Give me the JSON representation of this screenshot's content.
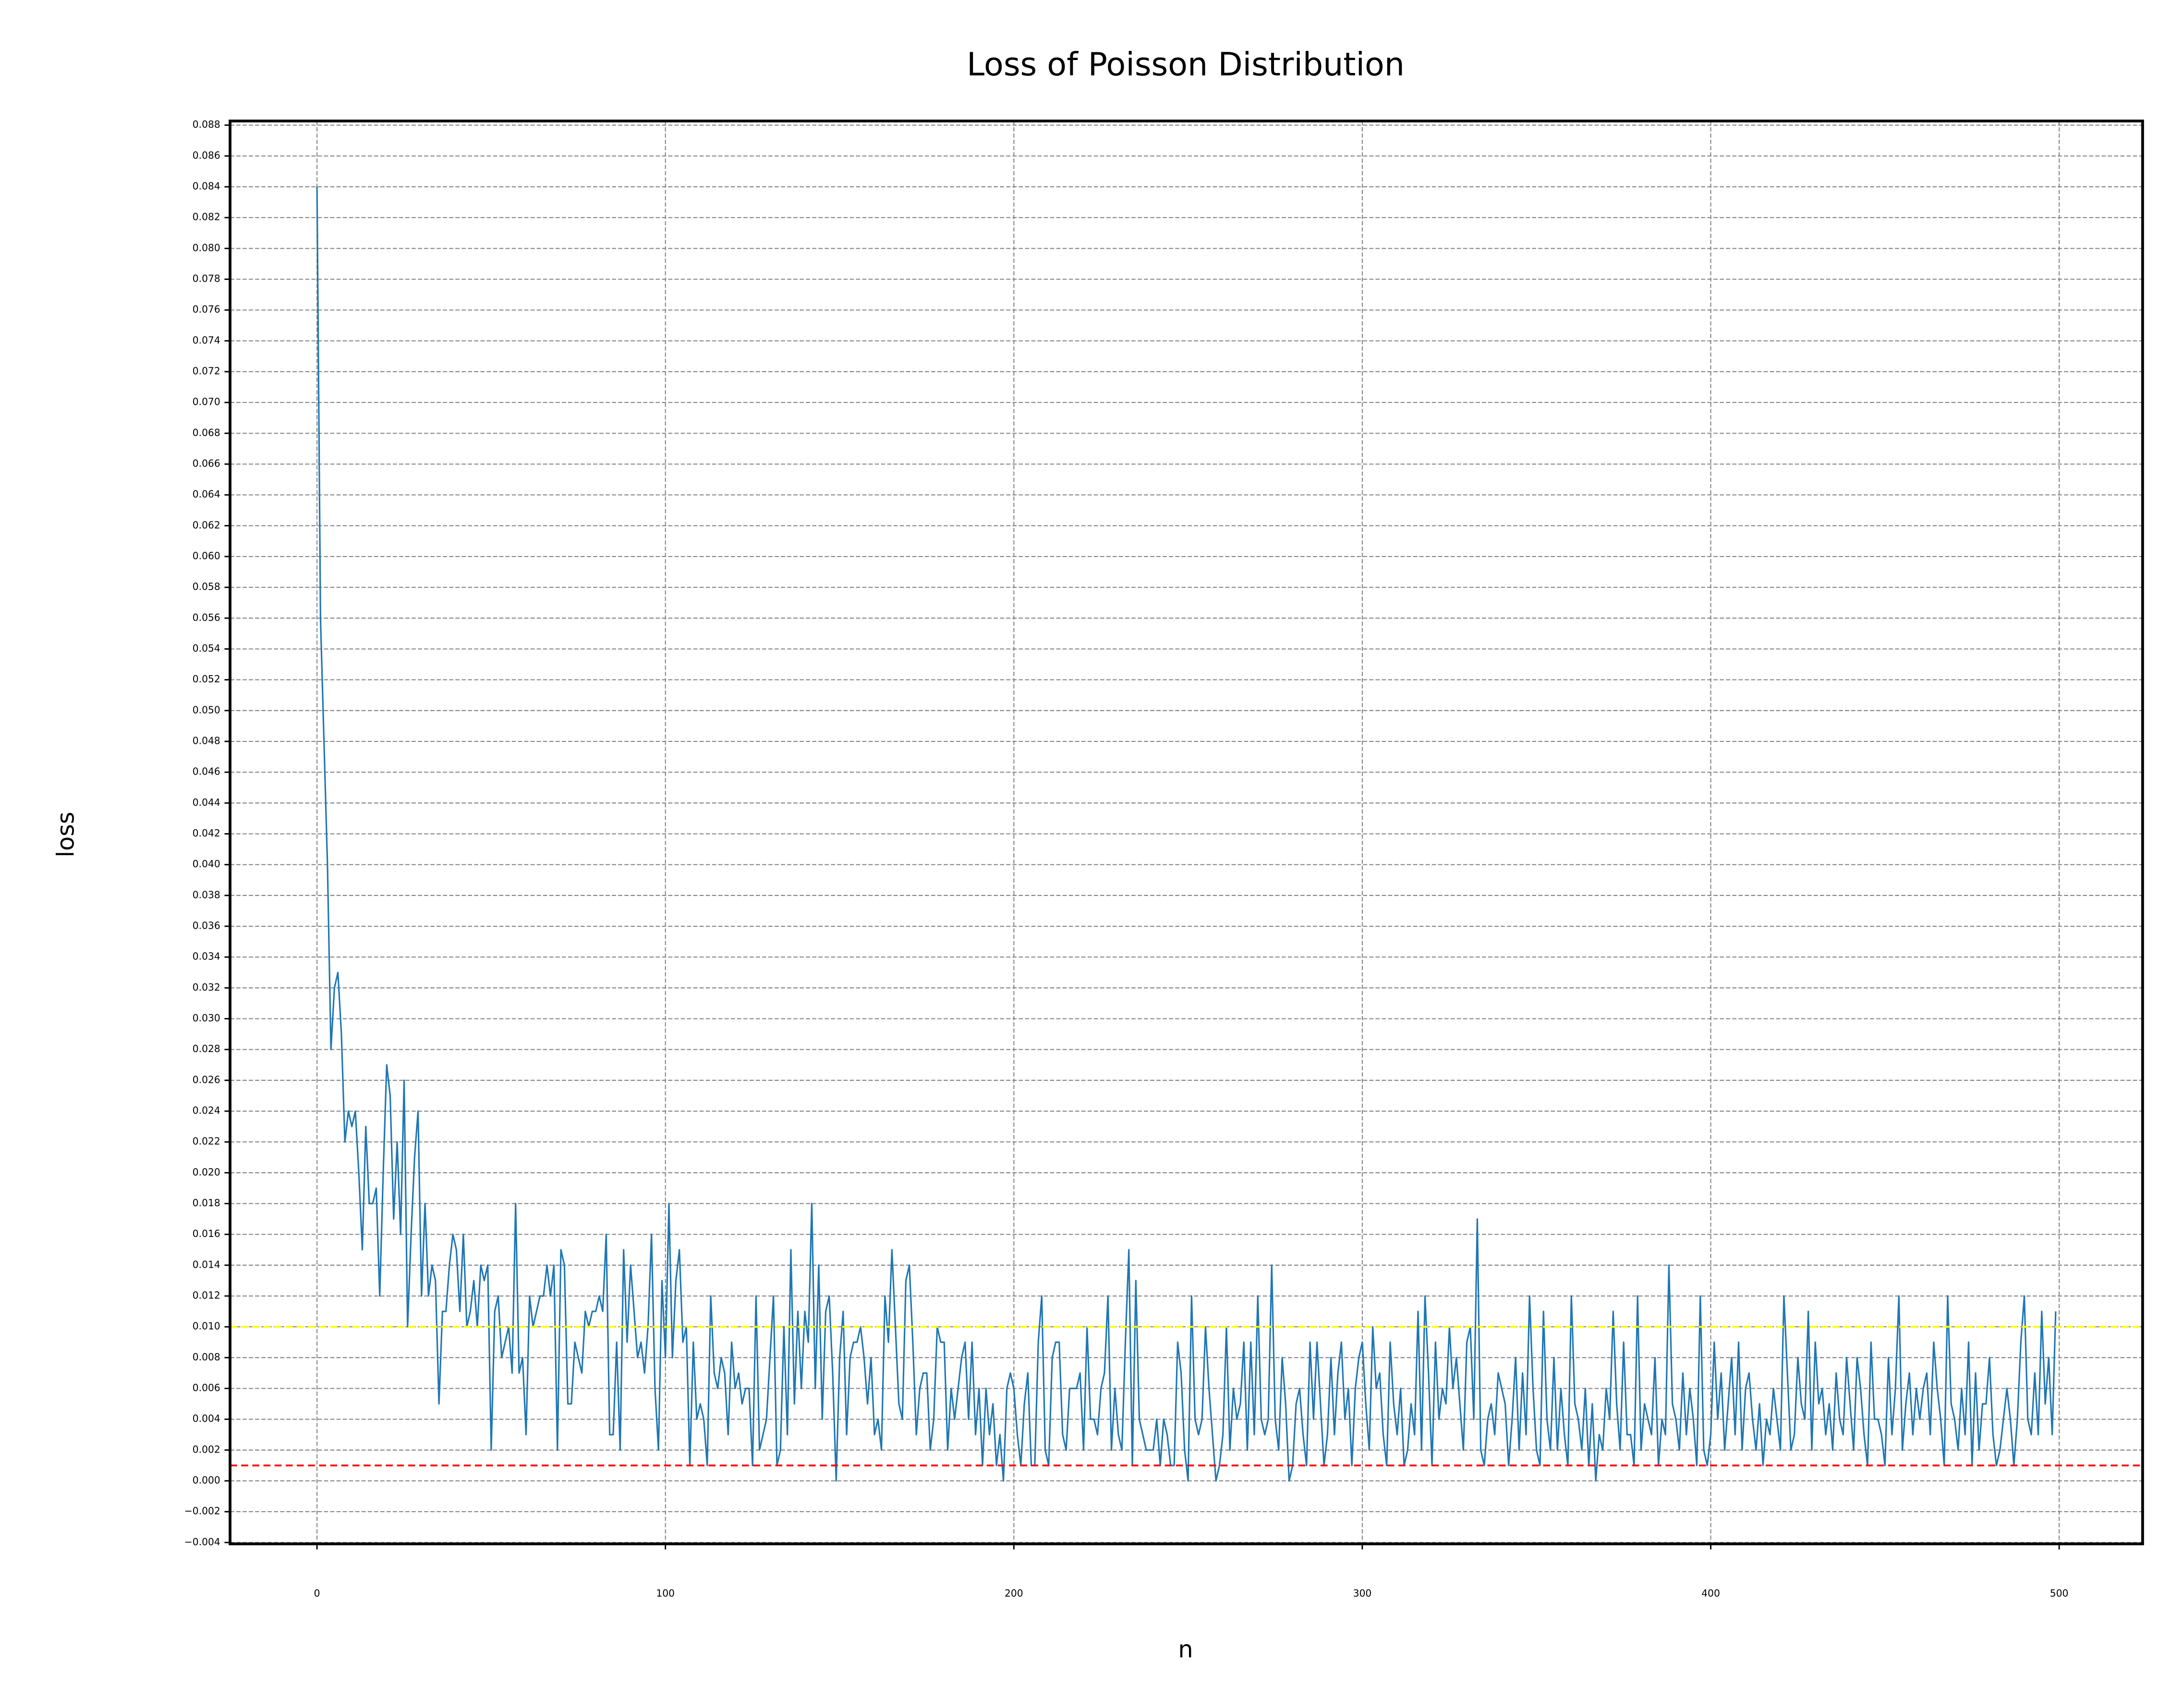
{
  "chart_data": {
    "type": "line",
    "title": "Loss of Poisson Distribution",
    "xlabel": "n",
    "ylabel": "loss",
    "xlim": [
      -24.95,
      523.95
    ],
    "ylim": [
      -0.00409,
      0.08827
    ],
    "xticks": [
      0,
      100,
      200,
      300,
      400,
      500
    ],
    "yticks": [
      {
        "value": -0.004,
        "label": "−0.004"
      },
      {
        "value": -0.002,
        "label": "−0.002"
      },
      {
        "value": 0,
        "label": "0.000"
      },
      0.002,
      0.004,
      0.006,
      0.008,
      {
        "value": 0.01,
        "label": "0.010"
      },
      0.012,
      0.014,
      0.016,
      0.018,
      {
        "value": 0.02,
        "label": "0.020"
      },
      0.022,
      0.024,
      0.026,
      0.028,
      {
        "value": 0.03,
        "label": "0.030"
      },
      0.032,
      0.034,
      0.036,
      0.038,
      {
        "value": 0.04,
        "label": "0.040"
      },
      0.042,
      0.044,
      0.046,
      0.048,
      {
        "value": 0.05,
        "label": "0.050"
      },
      0.052,
      0.054,
      0.056,
      0.058,
      {
        "value": 0.06,
        "label": "0.060"
      },
      0.062,
      0.064,
      0.066,
      0.068,
      {
        "value": 0.07,
        "label": "0.070"
      },
      0.072,
      0.074,
      0.076,
      0.078,
      {
        "value": 0.08,
        "label": "0.080"
      },
      0.082,
      0.084,
      0.086,
      0.088
    ],
    "grid": true,
    "hlines": [
      {
        "value": 0.01,
        "color": "#ffff00"
      },
      {
        "value": 0.001,
        "color": "#ff0000"
      }
    ],
    "series": [
      {
        "color": "#1f77b4",
        "x": [
          0,
          1,
          2,
          3,
          4,
          5,
          6,
          7,
          8,
          9,
          10,
          11,
          12,
          13,
          14,
          15,
          16,
          17,
          18,
          19,
          20,
          21,
          22,
          23,
          24,
          25,
          26,
          27,
          28,
          29,
          30,
          31,
          32,
          33,
          34,
          35,
          36,
          37,
          38,
          39,
          40,
          41,
          42,
          43,
          44,
          45,
          46,
          47,
          48,
          49,
          50,
          51,
          52,
          53,
          54,
          55,
          56,
          57,
          58,
          59,
          60,
          61,
          62,
          63,
          64,
          65,
          66,
          67,
          68,
          69,
          70,
          71,
          72,
          73,
          74,
          75,
          76,
          77,
          78,
          79,
          80,
          81,
          82,
          83,
          84,
          85,
          86,
          87,
          88,
          89,
          90,
          91,
          92,
          93,
          94,
          95,
          96,
          97,
          98,
          99,
          100,
          101,
          102,
          103,
          104,
          105,
          106,
          107,
          108,
          109,
          110,
          111,
          112,
          113,
          114,
          115,
          116,
          117,
          118,
          119,
          120,
          121,
          122,
          123,
          124,
          125,
          126,
          127,
          128,
          129,
          130,
          131,
          132,
          133,
          134,
          135,
          136,
          137,
          138,
          139,
          140,
          141,
          142,
          143,
          144,
          145,
          146,
          147,
          148,
          149,
          150,
          151,
          152,
          153,
          154,
          155,
          156,
          157,
          158,
          159,
          160,
          161,
          162,
          163,
          164,
          165,
          166,
          167,
          168,
          169,
          170,
          171,
          172,
          173,
          174,
          175,
          176,
          177,
          178,
          179,
          180,
          181,
          182,
          183,
          184,
          185,
          186,
          187,
          188,
          189,
          190,
          191,
          192,
          193,
          194,
          195,
          196,
          197,
          198,
          199,
          200,
          201,
          202,
          203,
          204,
          205,
          206,
          207,
          208,
          209,
          210,
          211,
          212,
          213,
          214,
          215,
          216,
          217,
          218,
          219,
          220,
          221,
          222,
          223,
          224,
          225,
          226,
          227,
          228,
          229,
          230,
          231,
          232,
          233,
          234,
          235,
          236,
          237,
          238,
          239,
          240,
          241,
          242,
          243,
          244,
          245,
          246,
          247,
          248,
          249,
          250,
          251,
          252,
          253,
          254,
          255,
          256,
          257,
          258,
          259,
          260,
          261,
          262,
          263,
          264,
          265,
          266,
          267,
          268,
          269,
          270,
          271,
          272,
          273,
          274,
          275,
          276,
          277,
          278,
          279,
          280,
          281,
          282,
          283,
          284,
          285,
          286,
          287,
          288,
          289,
          290,
          291,
          292,
          293,
          294,
          295,
          296,
          297,
          298,
          299,
          300,
          301,
          302,
          303,
          304,
          305,
          306,
          307,
          308,
          309,
          310,
          311,
          312,
          313,
          314,
          315,
          316,
          317,
          318,
          319,
          320,
          321,
          322,
          323,
          324,
          325,
          326,
          327,
          328,
          329,
          330,
          331,
          332,
          333,
          334,
          335,
          336,
          337,
          338,
          339,
          340,
          341,
          342,
          343,
          344,
          345,
          346,
          347,
          348,
          349,
          350,
          351,
          352,
          353,
          354,
          355,
          356,
          357,
          358,
          359,
          360,
          361,
          362,
          363,
          364,
          365,
          366,
          367,
          368,
          369,
          370,
          371,
          372,
          373,
          374,
          375,
          376,
          377,
          378,
          379,
          380,
          381,
          382,
          383,
          384,
          385,
          386,
          387,
          388,
          389,
          390,
          391,
          392,
          393,
          394,
          395,
          396,
          397,
          398,
          399,
          400,
          401,
          402,
          403,
          404,
          405,
          406,
          407,
          408,
          409,
          410,
          411,
          412,
          413,
          414,
          415,
          416,
          417,
          418,
          419,
          420,
          421,
          422,
          423,
          424,
          425,
          426,
          427,
          428,
          429,
          430,
          431,
          432,
          433,
          434,
          435,
          436,
          437,
          438,
          439,
          440,
          441,
          442,
          443,
          444,
          445,
          446,
          447,
          448,
          449,
          450,
          451,
          452,
          453,
          454,
          455,
          456,
          457,
          458,
          459,
          460,
          461,
          462,
          463,
          464,
          465,
          466,
          467,
          468,
          469,
          470,
          471,
          472,
          473,
          474,
          475,
          476,
          477,
          478,
          479,
          480,
          481,
          482,
          483,
          484,
          485,
          486,
          487,
          488,
          489,
          490,
          491,
          492,
          493,
          494,
          495,
          496,
          497,
          498,
          499
        ],
        "values": [
          0.084,
          0.056,
          0.048,
          0.04,
          0.028,
          0.032,
          0.033,
          0.029,
          0.022,
          0.024,
          0.023,
          0.024,
          0.02,
          0.015,
          0.023,
          0.018,
          0.018,
          0.019,
          0.012,
          0.02,
          0.027,
          0.025,
          0.017,
          0.022,
          0.016,
          0.026,
          0.01,
          0.016,
          0.021,
          0.024,
          0.012,
          0.018,
          0.012,
          0.014,
          0.013,
          0.005,
          0.011,
          0.011,
          0.014,
          0.016,
          0.015,
          0.011,
          0.016,
          0.01,
          0.011,
          0.013,
          0.01,
          0.014,
          0.013,
          0.014,
          0.002,
          0.011,
          0.012,
          0.008,
          0.009,
          0.01,
          0.007,
          0.018,
          0.007,
          0.008,
          0.003,
          0.012,
          0.01,
          0.011,
          0.012,
          0.012,
          0.014,
          0.012,
          0.014,
          0.002,
          0.015,
          0.014,
          0.005,
          0.005,
          0.009,
          0.008,
          0.007,
          0.011,
          0.01,
          0.011,
          0.011,
          0.012,
          0.011,
          0.016,
          0.003,
          0.003,
          0.009,
          0.002,
          0.015,
          0.009,
          0.014,
          0.011,
          0.008,
          0.009,
          0.007,
          0.01,
          0.016,
          0.006,
          0.002,
          0.013,
          0.008,
          0.018,
          0.008,
          0.013,
          0.015,
          0.009,
          0.01,
          0.001,
          0.009,
          0.004,
          0.005,
          0.004,
          0.001,
          0.012,
          0.007,
          0.006,
          0.008,
          0.007,
          0.003,
          0.009,
          0.006,
          0.007,
          0.005,
          0.006,
          0.006,
          0.001,
          0.012,
          0.002,
          0.003,
          0.004,
          0.008,
          0.012,
          0.001,
          0.002,
          0.01,
          0.003,
          0.015,
          0.005,
          0.011,
          0.006,
          0.011,
          0.009,
          0.018,
          0.006,
          0.014,
          0.004,
          0.011,
          0.012,
          0.007,
          0.0,
          0.008,
          0.011,
          0.003,
          0.008,
          0.009,
          0.009,
          0.01,
          0.008,
          0.005,
          0.008,
          0.003,
          0.004,
          0.002,
          0.012,
          0.009,
          0.015,
          0.01,
          0.005,
          0.004,
          0.013,
          0.014,
          0.009,
          0.003,
          0.006,
          0.007,
          0.007,
          0.002,
          0.004,
          0.01,
          0.009,
          0.009,
          0.002,
          0.006,
          0.004,
          0.006,
          0.008,
          0.009,
          0.004,
          0.009,
          0.003,
          0.006,
          0.001,
          0.006,
          0.003,
          0.005,
          0.001,
          0.003,
          0.0,
          0.006,
          0.007,
          0.006,
          0.003,
          0.001,
          0.005,
          0.007,
          0.001,
          0.001,
          0.009,
          0.012,
          0.002,
          0.001,
          0.008,
          0.009,
          0.009,
          0.003,
          0.002,
          0.006,
          0.006,
          0.006,
          0.007,
          0.002,
          0.01,
          0.004,
          0.004,
          0.003,
          0.006,
          0.007,
          0.012,
          0.002,
          0.006,
          0.003,
          0.002,
          0.009,
          0.015,
          0.001,
          0.013,
          0.004,
          0.003,
          0.002,
          0.002,
          0.002,
          0.004,
          0.001,
          0.004,
          0.003,
          0.001,
          0.001,
          0.009,
          0.007,
          0.002,
          0.0,
          0.012,
          0.004,
          0.003,
          0.004,
          0.01,
          0.006,
          0.003,
          0.0,
          0.001,
          0.003,
          0.01,
          0.002,
          0.006,
          0.004,
          0.005,
          0.009,
          0.002,
          0.009,
          0.003,
          0.012,
          0.004,
          0.003,
          0.004,
          0.014,
          0.004,
          0.002,
          0.008,
          0.005,
          0.0,
          0.001,
          0.005,
          0.006,
          0.003,
          0.001,
          0.009,
          0.004,
          0.009,
          0.005,
          0.001,
          0.003,
          0.008,
          0.003,
          0.007,
          0.009,
          0.004,
          0.006,
          0.001,
          0.006,
          0.008,
          0.009,
          0.005,
          0.002,
          0.01,
          0.006,
          0.007,
          0.003,
          0.001,
          0.009,
          0.005,
          0.003,
          0.006,
          0.001,
          0.002,
          0.005,
          0.003,
          0.011,
          0.002,
          0.012,
          0.007,
          0.001,
          0.009,
          0.004,
          0.006,
          0.005,
          0.01,
          0.006,
          0.008,
          0.005,
          0.002,
          0.009,
          0.01,
          0.004,
          0.017,
          0.002,
          0.001,
          0.004,
          0.005,
          0.003,
          0.007,
          0.006,
          0.005,
          0.001,
          0.004,
          0.008,
          0.002,
          0.007,
          0.003,
          0.012,
          0.006,
          0.002,
          0.001,
          0.011,
          0.004,
          0.002,
          0.008,
          0.002,
          0.006,
          0.003,
          0.001,
          0.012,
          0.005,
          0.004,
          0.002,
          0.006,
          0.001,
          0.005,
          0.0,
          0.003,
          0.002,
          0.006,
          0.004,
          0.011,
          0.005,
          0.002,
          0.009,
          0.003,
          0.003,
          0.001,
          0.012,
          0.002,
          0.005,
          0.004,
          0.003,
          0.008,
          0.001,
          0.004,
          0.003,
          0.014,
          0.005,
          0.004,
          0.002,
          0.007,
          0.003,
          0.006,
          0.004,
          0.001,
          0.012,
          0.002,
          0.001,
          0.003,
          0.009,
          0.004,
          0.007,
          0.002,
          0.005,
          0.008,
          0.003,
          0.009,
          0.002,
          0.006,
          0.007,
          0.004,
          0.002,
          0.005,
          0.001,
          0.004,
          0.003,
          0.006,
          0.004,
          0.002,
          0.012,
          0.007,
          0.002,
          0.003,
          0.008,
          0.005,
          0.004,
          0.011,
          0.002,
          0.009,
          0.005,
          0.006,
          0.003,
          0.005,
          0.002,
          0.007,
          0.004,
          0.003,
          0.008,
          0.005,
          0.002,
          0.008,
          0.006,
          0.003,
          0.001,
          0.009,
          0.004,
          0.004,
          0.003,
          0.001,
          0.008,
          0.003,
          0.006,
          0.012,
          0.002,
          0.005,
          0.007,
          0.003,
          0.006,
          0.004,
          0.006,
          0.007,
          0.003,
          0.009,
          0.006,
          0.004,
          0.001,
          0.012,
          0.005,
          0.004,
          0.002,
          0.006,
          0.003,
          0.009,
          0.001,
          0.007,
          0.002,
          0.005,
          0.005,
          0.008,
          0.003,
          0.001,
          0.002,
          0.004,
          0.006,
          0.004,
          0.001,
          0.004,
          0.009,
          0.012,
          0.004,
          0.003,
          0.007,
          0.003,
          0.011,
          0.005,
          0.008,
          0.003,
          0.011
        ]
      }
    ]
  }
}
